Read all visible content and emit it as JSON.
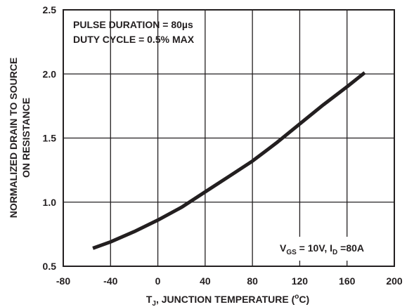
{
  "chart_data": {
    "type": "line",
    "title": "",
    "xlabel": {
      "main": "T",
      "sub": "J",
      "rest": ", JUNCTION TEMPERATURE (",
      "sup": "o",
      "end": "C)"
    },
    "ylabel": {
      "line1": "NORMALIZED DRAIN TO SOURCE",
      "line2": "ON RESISTANCE"
    },
    "xlim": [
      -80,
      200
    ],
    "ylim": [
      0.5,
      2.5
    ],
    "x_ticks": [
      -80,
      -40,
      0,
      40,
      80,
      120,
      160,
      200
    ],
    "x_tick_labels": [
      "-80",
      "-40",
      "0",
      "40",
      "80",
      "120",
      "160",
      "200"
    ],
    "y_ticks": [
      0.5,
      1.0,
      1.5,
      2.0,
      2.5
    ],
    "y_tick_labels": [
      "0.5",
      "1.0",
      "1.5",
      "2.0",
      "2.5"
    ],
    "grid": true,
    "series": [
      {
        "x": [
          -55,
          -40,
          -20,
          0,
          20,
          40,
          60,
          80,
          100,
          120,
          140,
          160,
          175
        ],
        "y": [
          0.64,
          0.69,
          0.77,
          0.86,
          0.96,
          1.08,
          1.2,
          1.32,
          1.46,
          1.61,
          1.76,
          1.9,
          2.01
        ]
      }
    ],
    "annotations": {
      "pulse_line": "PULSE DURATION = 80µs",
      "duty_line": "DUTY CYCLE = 0.5% MAX",
      "conditions": {
        "v": "V",
        "v_sub": "GS",
        "v_rest": " = 10V, I",
        "i_sub": "D",
        "i_rest": " =80A"
      }
    },
    "colors": {
      "curve": "#231f20",
      "grid": "#231f20",
      "axes": "#231f20"
    }
  }
}
